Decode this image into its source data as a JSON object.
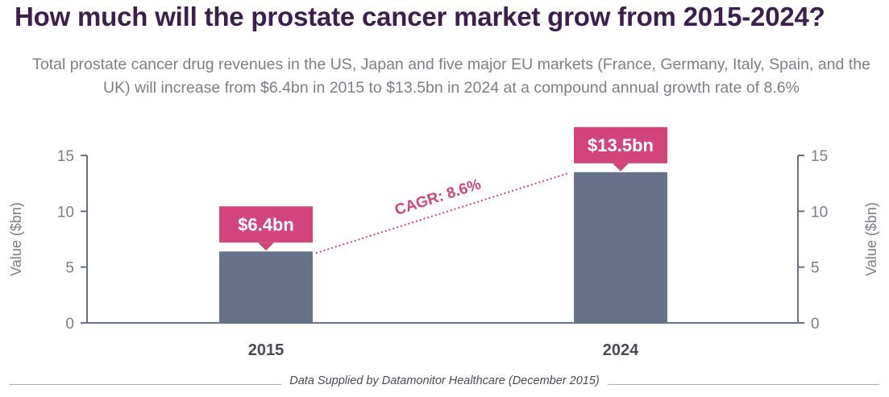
{
  "title": "How much will the prostate cancer market grow from 2015-2024?",
  "subtitle": "Total prostate cancer drug revenues in the US, Japan and five major EU markets (France, Germany, Italy, Spain, and the UK) will increase from $6.4bn in 2015 to $13.5bn in 2024 at a compound annual growth rate of 8.6%",
  "footer": "Data Supplied by Datamonitor Healthcare (December 2015)",
  "colors": {
    "bar": "#667289",
    "label_bg": "#d1457a",
    "axis": "#667289",
    "cagr": "#d1457a",
    "title": "#3d1f4f"
  },
  "chart_data": {
    "type": "bar",
    "categories": [
      "2015",
      "2024"
    ],
    "values": [
      6.4,
      13.5
    ],
    "data_labels": [
      "$6.4bn",
      "$13.5bn"
    ],
    "ylabel": "Value ($bn)",
    "ylabel_right": "Value ($bn)",
    "ylim": [
      0,
      15
    ],
    "yticks": [
      0,
      5,
      10,
      15
    ],
    "annotation": "CAGR: 8.6%",
    "grid": false
  }
}
